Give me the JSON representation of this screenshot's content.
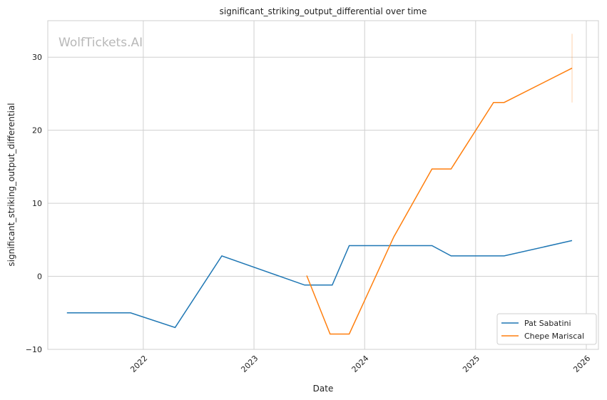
{
  "chart_data": {
    "type": "line",
    "title": "significant_striking_output_differential over time",
    "xlabel": "Date",
    "ylabel": "significant_striking_output_differential",
    "watermark": "WolfTickets.AI",
    "xlim": [
      "2021-02-20",
      "2026-02-10"
    ],
    "ylim": [
      -10,
      35
    ],
    "x_ticks": [
      "2022-01-01",
      "2023-01-01",
      "2024-01-01",
      "2025-01-01",
      "2026-01-01"
    ],
    "x_tick_labels": [
      "2022",
      "2023",
      "2024",
      "2025",
      "2026"
    ],
    "y_ticks": [
      -10,
      0,
      10,
      20,
      30
    ],
    "y_tick_labels": [
      "−10",
      "0",
      "10",
      "20",
      "30"
    ],
    "grid": true,
    "legend_position": "bottom-right",
    "series": [
      {
        "name": "Pat Sabatini",
        "color": "#1f77b4",
        "points": [
          {
            "x": "2021-04-24",
            "y": -5.0
          },
          {
            "x": "2021-11-20",
            "y": -5.0
          },
          {
            "x": "2022-04-16",
            "y": -7.0
          },
          {
            "x": "2022-09-17",
            "y": 2.8
          },
          {
            "x": "2023-06-17",
            "y": -1.2
          },
          {
            "x": "2023-09-16",
            "y": -1.2
          },
          {
            "x": "2023-11-11",
            "y": 4.2
          },
          {
            "x": "2024-08-10",
            "y": 4.2
          },
          {
            "x": "2024-10-12",
            "y": 2.8
          },
          {
            "x": "2025-03-01",
            "y": 2.8
          },
          {
            "x": "2025-04-05",
            "y": 2.8
          },
          {
            "x": "2025-11-15",
            "y": 4.9
          }
        ]
      },
      {
        "name": "Chepe Mariscal",
        "color": "#ff7f0e",
        "points": [
          {
            "x": "2023-06-24",
            "y": 0.1
          },
          {
            "x": "2023-09-09",
            "y": -7.9
          },
          {
            "x": "2023-11-11",
            "y": -7.9
          },
          {
            "x": "2024-04-06",
            "y": 5.4
          },
          {
            "x": "2024-08-10",
            "y": 14.7
          },
          {
            "x": "2024-10-12",
            "y": 14.7
          },
          {
            "x": "2025-03-01",
            "y": 23.8
          },
          {
            "x": "2025-04-05",
            "y": 23.8
          },
          {
            "x": "2025-11-15",
            "y": 28.5
          }
        ],
        "error_bar": {
          "x": "2025-11-15",
          "low": 23.8,
          "high": 33.2
        }
      }
    ]
  }
}
